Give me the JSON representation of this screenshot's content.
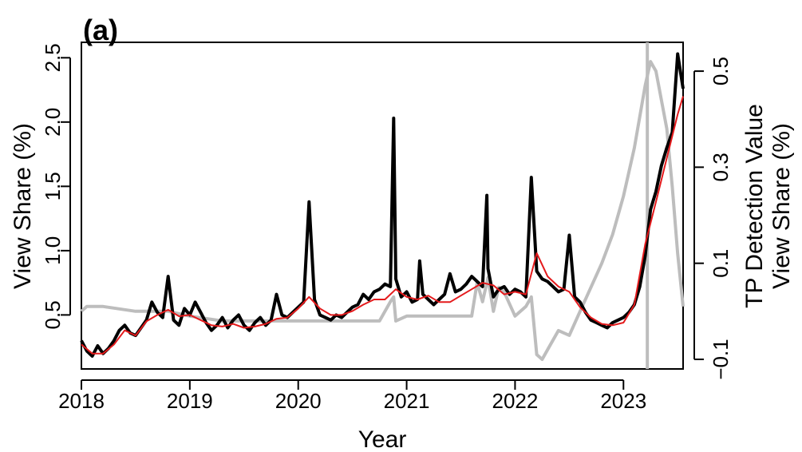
{
  "chart_data": {
    "type": "line",
    "panel_label": "(a)",
    "xlabel": "Year",
    "ylabel": "View Share (%)",
    "ylabel_right": [
      "TP Detection Value",
      "View Share (%)"
    ],
    "xlim": [
      2018,
      2023.55
    ],
    "ylim": [
      0.08,
      2.62
    ],
    "ylim_right": [
      -0.12,
      0.56
    ],
    "x_ticks": [
      2018,
      2019,
      2020,
      2021,
      2022,
      2023
    ],
    "x_tick_labels": [
      "2018",
      "2019",
      "2020",
      "2021",
      "2022",
      "2023"
    ],
    "y_ticks": [
      0.5,
      1.0,
      1.5,
      2.0,
      2.5
    ],
    "y_tick_labels": [
      "0.5",
      "1.0",
      "1.5",
      "2.0",
      "2.5"
    ],
    "y_right_ticks": [
      -0.1,
      0.1,
      0.3,
      0.5
    ],
    "y_right_tick_labels": [
      "−0.1",
      "0.1",
      "0.3",
      "0.5"
    ],
    "grid": false,
    "colors": {
      "raw": "#000000",
      "smooth": "#e41a1c",
      "tp": "#bdbdbd",
      "vline": "#bdbdbd"
    },
    "changepoint_x": 2023.22,
    "series": [
      {
        "key": "raw",
        "axis": "left",
        "x": [
          2018.0,
          2018.05,
          2018.1,
          2018.15,
          2018.2,
          2018.25,
          2018.3,
          2018.35,
          2018.4,
          2018.45,
          2018.5,
          2018.55,
          2018.6,
          2018.65,
          2018.7,
          2018.75,
          2018.8,
          2018.85,
          2018.9,
          2018.95,
          2019.0,
          2019.05,
          2019.1,
          2019.15,
          2019.2,
          2019.25,
          2019.3,
          2019.35,
          2019.4,
          2019.45,
          2019.5,
          2019.55,
          2019.6,
          2019.65,
          2019.7,
          2019.75,
          2019.8,
          2019.85,
          2019.9,
          2019.95,
          2020.0,
          2020.05,
          2020.1,
          2020.15,
          2020.2,
          2020.25,
          2020.3,
          2020.35,
          2020.4,
          2020.45,
          2020.5,
          2020.55,
          2020.6,
          2020.65,
          2020.7,
          2020.75,
          2020.8,
          2020.85,
          2020.88,
          2020.9,
          2020.95,
          2021.0,
          2021.05,
          2021.1,
          2021.12,
          2021.15,
          2021.2,
          2021.25,
          2021.3,
          2021.35,
          2021.4,
          2021.45,
          2021.5,
          2021.55,
          2021.6,
          2021.65,
          2021.7,
          2021.74,
          2021.75,
          2021.8,
          2021.85,
          2021.9,
          2021.95,
          2022.0,
          2022.05,
          2022.1,
          2022.15,
          2022.2,
          2022.25,
          2022.3,
          2022.35,
          2022.4,
          2022.45,
          2022.5,
          2022.55,
          2022.6,
          2022.65,
          2022.7,
          2022.75,
          2022.8,
          2022.85,
          2022.9,
          2022.95,
          2023.0,
          2023.05,
          2023.1,
          2023.15,
          2023.2,
          2023.25,
          2023.3,
          2023.35,
          2023.4,
          2023.45,
          2023.5,
          2023.55
        ],
        "y": [
          0.3,
          0.22,
          0.18,
          0.26,
          0.2,
          0.24,
          0.3,
          0.38,
          0.42,
          0.36,
          0.34,
          0.4,
          0.46,
          0.6,
          0.52,
          0.48,
          0.8,
          0.46,
          0.42,
          0.55,
          0.5,
          0.6,
          0.52,
          0.44,
          0.38,
          0.42,
          0.48,
          0.4,
          0.46,
          0.5,
          0.42,
          0.38,
          0.44,
          0.48,
          0.42,
          0.46,
          0.66,
          0.5,
          0.48,
          0.52,
          0.56,
          0.6,
          1.38,
          0.62,
          0.5,
          0.48,
          0.46,
          0.5,
          0.48,
          0.52,
          0.56,
          0.58,
          0.66,
          0.62,
          0.68,
          0.7,
          0.74,
          0.72,
          2.03,
          0.78,
          0.64,
          0.68,
          0.6,
          0.62,
          0.92,
          0.66,
          0.62,
          0.58,
          0.62,
          0.66,
          0.82,
          0.68,
          0.7,
          0.74,
          0.8,
          0.76,
          0.72,
          1.43,
          0.86,
          0.64,
          0.7,
          0.72,
          0.66,
          0.7,
          0.68,
          0.64,
          1.57,
          0.84,
          0.78,
          0.76,
          0.72,
          0.68,
          0.7,
          1.12,
          0.64,
          0.6,
          0.52,
          0.46,
          0.44,
          0.42,
          0.4,
          0.44,
          0.46,
          0.48,
          0.52,
          0.58,
          0.72,
          0.96,
          1.32,
          1.46,
          1.66,
          1.8,
          1.92,
          2.53,
          2.26
        ]
      },
      {
        "key": "smooth",
        "axis": "left",
        "x": [
          2018.0,
          2018.1,
          2018.2,
          2018.3,
          2018.4,
          2018.5,
          2018.6,
          2018.7,
          2018.8,
          2018.9,
          2019.0,
          2019.1,
          2019.2,
          2019.3,
          2019.4,
          2019.5,
          2019.6,
          2019.7,
          2019.8,
          2019.9,
          2020.0,
          2020.1,
          2020.2,
          2020.3,
          2020.4,
          2020.5,
          2020.6,
          2020.7,
          2020.8,
          2020.9,
          2021.0,
          2021.1,
          2021.2,
          2021.3,
          2021.4,
          2021.5,
          2021.6,
          2021.7,
          2021.8,
          2021.9,
          2022.0,
          2022.1,
          2022.2,
          2022.3,
          2022.4,
          2022.5,
          2022.6,
          2022.7,
          2022.8,
          2022.9,
          2023.0,
          2023.1,
          2023.2,
          2023.3,
          2023.4,
          2023.5,
          2023.55
        ],
        "y": [
          0.27,
          0.2,
          0.2,
          0.27,
          0.38,
          0.34,
          0.45,
          0.5,
          0.54,
          0.49,
          0.5,
          0.46,
          0.42,
          0.41,
          0.43,
          0.4,
          0.41,
          0.43,
          0.47,
          0.48,
          0.55,
          0.64,
          0.55,
          0.5,
          0.5,
          0.53,
          0.58,
          0.62,
          0.62,
          0.7,
          0.64,
          0.62,
          0.65,
          0.6,
          0.6,
          0.65,
          0.7,
          0.75,
          0.73,
          0.66,
          0.68,
          0.66,
          0.98,
          0.8,
          0.72,
          0.68,
          0.56,
          0.48,
          0.43,
          0.42,
          0.44,
          0.58,
          1.05,
          1.38,
          1.72,
          2.06,
          2.2
        ]
      },
      {
        "key": "tp",
        "axis": "right",
        "x": [
          2018.0,
          2018.05,
          2018.2,
          2018.5,
          2018.8,
          2019.0,
          2019.3,
          2019.6,
          2019.9,
          2020.2,
          2020.5,
          2020.75,
          2020.85,
          2020.88,
          2020.9,
          2021.0,
          2021.3,
          2021.6,
          2021.65,
          2021.7,
          2021.75,
          2021.8,
          2021.85,
          2021.9,
          2022.0,
          2022.1,
          2022.15,
          2022.2,
          2022.25,
          2022.3,
          2022.4,
          2022.5,
          2022.6,
          2022.7,
          2022.8,
          2022.9,
          2023.0,
          2023.1,
          2023.2,
          2023.25,
          2023.3,
          2023.4,
          2023.45,
          2023.5,
          2023.55
        ],
        "y": [
          0.0,
          0.01,
          0.01,
          0.0,
          0.0,
          -0.01,
          -0.02,
          -0.02,
          -0.02,
          -0.02,
          -0.02,
          -0.02,
          0.02,
          0.03,
          -0.02,
          -0.01,
          -0.01,
          -0.01,
          0.06,
          0.02,
          0.07,
          0.0,
          0.05,
          0.04,
          -0.01,
          0.01,
          0.03,
          -0.09,
          -0.1,
          -0.08,
          -0.04,
          -0.05,
          0.0,
          0.05,
          0.1,
          0.16,
          0.24,
          0.34,
          0.47,
          0.52,
          0.5,
          0.38,
          0.26,
          0.12,
          0.01
        ]
      }
    ]
  }
}
